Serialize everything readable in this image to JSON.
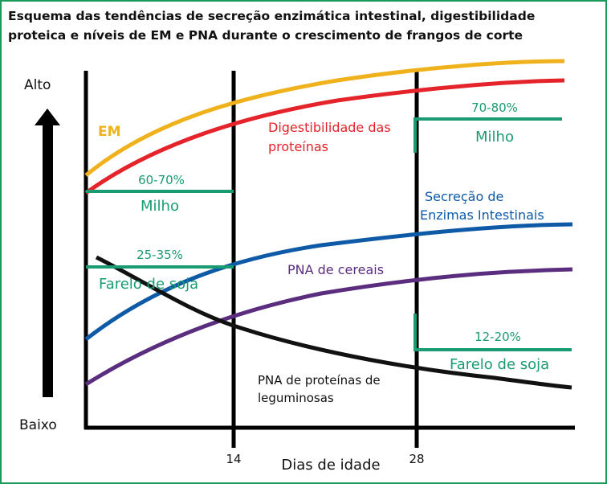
{
  "title": {
    "line1": "Esquema das tendências de secreção enzimática intestinal, digestibilidade",
    "line2": "proteica e níveis de EM e PNA durante o crescimento de frangos de corte"
  },
  "axis": {
    "y_high": "Alto",
    "y_low": "Baixo",
    "x_title": "Dias de idade",
    "tick_14": "14",
    "tick_28": "28"
  },
  "curves": {
    "em": {
      "label": "EM",
      "color": "#f0b21c"
    },
    "protein_digestibility": {
      "label_line1": "Digestibilidade das",
      "label_line2": "proteínas",
      "color": "#e4232b"
    },
    "intestinal_enzymes": {
      "label_line1": "Secreção de",
      "label_line2": "Enzimas Intestinais",
      "color": "#0e5aa7"
    },
    "cereal_pna": {
      "label": "PNA de cereais",
      "color": "#5b2d7e"
    },
    "legume_pna": {
      "label_line1": "PNA de proteínas de",
      "label_line2": "leguminosas",
      "color": "#111111"
    }
  },
  "inclusion": {
    "color": "#1a9b72",
    "corn_early": {
      "pct": "60-70%",
      "name": "Milho"
    },
    "soy_early": {
      "pct": "25-35%",
      "name": "Farelo de soja"
    },
    "corn_late": {
      "pct": "70-80%",
      "name": "Milho"
    },
    "soy_late": {
      "pct": "12-20%",
      "name": "Farelo de soja"
    }
  }
}
